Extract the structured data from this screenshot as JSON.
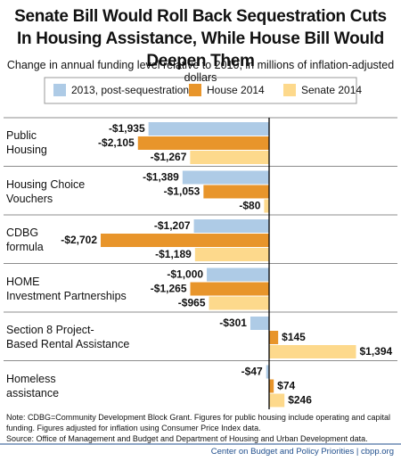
{
  "chart_data": {
    "type": "bar",
    "orientation": "horizontal",
    "title": "Senate Bill Would Roll Back Sequestration Cuts\nIn Housing Assistance, While House Bill Would Deepen Them",
    "subtitle": "Change in annual funding level relative to 2010, in millions of inflation-adjusted dollars",
    "categories": [
      "Public\nHousing",
      "Housing Choice\nVouchers",
      "CDBG\nformula",
      "HOME\nInvestment Partnerships",
      "Section 8 Project-\nBased Rental Assistance",
      "Homeless\nassistance"
    ],
    "series": [
      {
        "name": "2013, post-sequestration",
        "color": "#aecbe6",
        "values": [
          -1935,
          -1389,
          -1207,
          -1000,
          -301,
          -47
        ],
        "value_labels": [
          "-$1,935",
          "-$1,389",
          "-$1,207",
          "-$1,000",
          "-$301",
          "-$47"
        ]
      },
      {
        "name": "House 2014",
        "color": "#e8952b",
        "values": [
          -2105,
          -1053,
          -2702,
          -1265,
          145,
          74
        ],
        "value_labels": [
          "-$2,105",
          "-$1,053",
          "-$2,702",
          "-$1,265",
          "$145",
          "$74"
        ]
      },
      {
        "name": "Senate 2014",
        "color": "#fdd98c",
        "values": [
          -1267,
          -80,
          -1189,
          -965,
          1394,
          246
        ],
        "value_labels": [
          "-$1,267",
          "-$80",
          "-$1,189",
          "-$965",
          "$1,394",
          "$246"
        ]
      }
    ],
    "notes": [
      "Note: CDBG=Community Development Block Grant. Figures for public housing include operating and capital\nfunding.  Figures adjusted for inflation using Consumer Price Index data.",
      "Source: Office of Management and Budget and Department of Housing and Urban Development data."
    ],
    "footer": "Center on Budget and Policy Priorities | cbpp.org"
  }
}
